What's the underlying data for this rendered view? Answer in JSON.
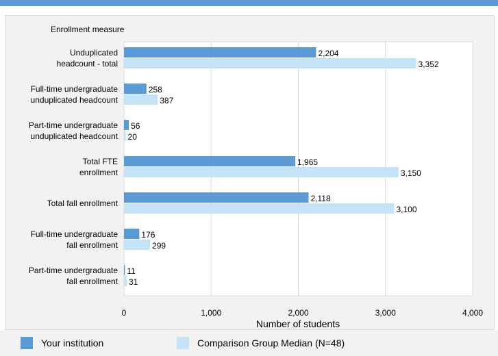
{
  "chart_data": {
    "type": "bar",
    "orientation": "horizontal",
    "category_axis_title": "Enrollment measure",
    "categories": [
      [
        "Unduplicated",
        "headcount - total"
      ],
      [
        "Full-time undergraduate",
        "unduplicated headcount"
      ],
      [
        "Part-time undergraduate",
        "unduplicated headcount"
      ],
      [
        "Total FTE",
        "enrollment"
      ],
      [
        "Total fall enrollment"
      ],
      [
        "Full-time undergraduate",
        "fall enrollment"
      ],
      [
        "Part-time undergraduate",
        "fall enrollment"
      ]
    ],
    "series": [
      {
        "name": "Your institution",
        "color": "#5b9bd5",
        "values": [
          2204,
          258,
          56,
          1965,
          2118,
          176,
          11
        ],
        "labels": [
          "2,204",
          "258",
          "56",
          "1,965",
          "2,118",
          "176",
          "11"
        ]
      },
      {
        "name": "Comparison Group Median (N=48)",
        "color": "#c5e3f6",
        "values": [
          3352,
          387,
          20,
          3150,
          3100,
          299,
          31
        ],
        "labels": [
          "3,352",
          "387",
          "20",
          "3,150",
          "3,100",
          "299",
          "31"
        ]
      }
    ],
    "xlabel": "Number of students",
    "xlim": [
      0,
      4000
    ],
    "xticks": [
      0,
      1000,
      2000,
      3000,
      4000
    ],
    "xtick_labels": [
      "0",
      "1,000",
      "2,000",
      "3,000",
      "4,000"
    ],
    "grid": true,
    "legend_position": "bottom"
  },
  "legend": {
    "items": [
      {
        "label": "Your institution",
        "color": "#5b9bd5"
      },
      {
        "label": "Comparison Group Median (N=48)",
        "color": "#c5e3f6"
      }
    ]
  }
}
